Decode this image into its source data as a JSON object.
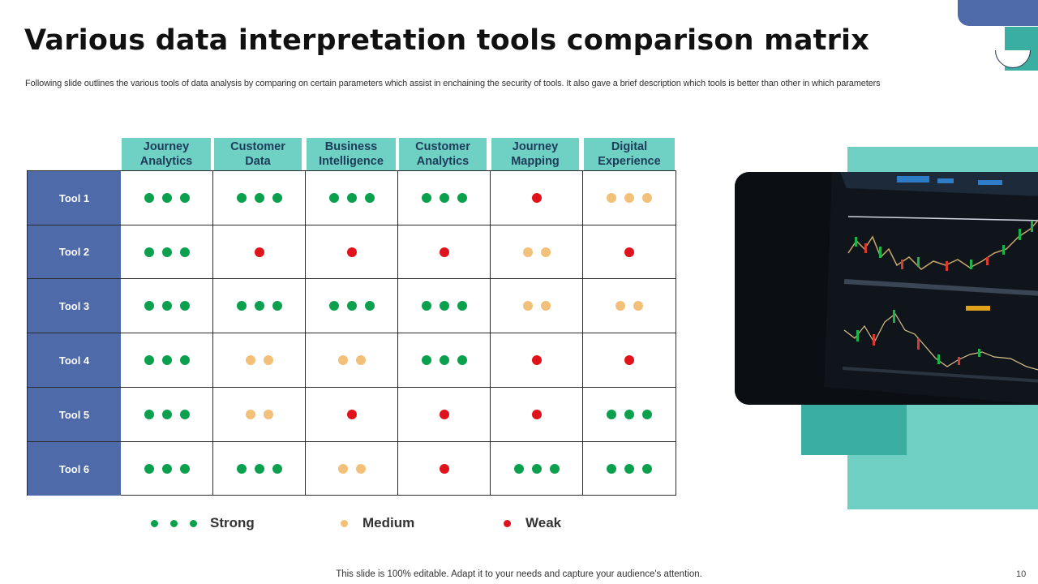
{
  "slide": {
    "title": "Various data interpretation tools comparison matrix",
    "subtitle": "Following slide outlines the various tools of data analysis by comparing on certain parameters which assist in enchaining the security of tools. It also gave a brief description which tools is better than other in which parameters",
    "footer": "This slide is 100% editable. Adapt it to your needs and capture your audience's attention.",
    "page_number": "10"
  },
  "matrix": {
    "columns": [
      {
        "line1": "Journey",
        "line2": "Analytics"
      },
      {
        "line1": "Customer",
        "line2": "Data"
      },
      {
        "line1": "Business",
        "line2": "Intelligence"
      },
      {
        "line1": "Customer",
        "line2": "Analytics"
      },
      {
        "line1": "Journey",
        "line2": "Mapping"
      },
      {
        "line1": "Digital",
        "line2": "Experience"
      }
    ],
    "rows": [
      {
        "label": "Tool 1",
        "ratings": [
          "Strong",
          "Strong",
          "Strong",
          "Strong",
          "Weak",
          "Medium-3"
        ]
      },
      {
        "label": "Tool 2",
        "ratings": [
          "Strong",
          "Weak",
          "Weak",
          "Weak",
          "Medium",
          "Weak"
        ]
      },
      {
        "label": "Tool 3",
        "ratings": [
          "Strong",
          "Strong",
          "Strong",
          "Strong",
          "Medium",
          "Medium"
        ]
      },
      {
        "label": "Tool 4",
        "ratings": [
          "Strong",
          "Medium",
          "Medium",
          "Strong",
          "Weak",
          "Weak"
        ]
      },
      {
        "label": "Tool 5",
        "ratings": [
          "Strong",
          "Medium",
          "Weak",
          "Weak",
          "Weak",
          "Strong"
        ]
      },
      {
        "label": "Tool 6",
        "ratings": [
          "Strong",
          "Strong",
          "Medium",
          "Weak",
          "Strong",
          "Strong"
        ]
      }
    ]
  },
  "legend": [
    {
      "label": "Strong",
      "dots": 3,
      "color": "#0aa04e"
    },
    {
      "label": "Medium",
      "dots": 1,
      "color": "#f2c078"
    },
    {
      "label": "Weak",
      "dots": 1,
      "color": "#e0121b"
    }
  ],
  "colors": {
    "strong": "#0aa04e",
    "medium": "#f2c078",
    "weak": "#e0121b",
    "row_header": "#4f6aa8",
    "column_header": "#6fd0c4",
    "accent_teal": "#3aaea0"
  },
  "image": {
    "icon": "stock-chart-monitor-photo"
  }
}
